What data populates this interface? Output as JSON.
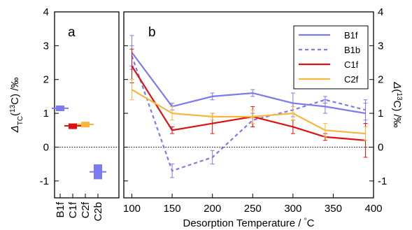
{
  "chart_data": [
    {
      "panel": "a",
      "type": "scatter",
      "categories": [
        "B1f",
        "C1f",
        "C2f",
        "C2b"
      ],
      "ylabel": "Δ_TC(¹³C) /‰",
      "ylim": [
        -1.5,
        4
      ],
      "yticks": [
        -1,
        0,
        1,
        2,
        3,
        4
      ],
      "zero_line": true,
      "points": [
        {
          "category": "B1f",
          "y": 1.15,
          "err": 0.08,
          "color": "#7b7bed"
        },
        {
          "category": "C1f",
          "y": 0.63,
          "err": 0.07,
          "color": "#dd1111"
        },
        {
          "category": "C2f",
          "y": 0.67,
          "err": 0.08,
          "color": "#f6b73c"
        },
        {
          "category": "C2b",
          "y": -0.73,
          "err": 0.22,
          "color": "#7b7bed"
        }
      ]
    },
    {
      "panel": "b",
      "type": "line",
      "xlabel": "Desorption Temperature / °C",
      "ylabel": "Δ(¹³C) /‰",
      "xlim": [
        90,
        400
      ],
      "ylim": [
        -1.5,
        4
      ],
      "xticks": [
        100,
        150,
        200,
        250,
        300,
        350,
        400
      ],
      "yticks": [
        -1,
        0,
        1,
        2,
        3,
        4
      ],
      "zero_line": true,
      "legend": "top-right",
      "series": [
        {
          "name": "B1f",
          "color": "#7b7bed",
          "dash": false,
          "x": [
            100,
            150,
            200,
            250,
            300,
            340,
            390
          ],
          "y": [
            2.8,
            1.2,
            1.5,
            1.6,
            1.3,
            1.2,
            1.0
          ],
          "err": [
            0.5,
            0.1,
            0.1,
            0.1,
            0.3,
            0.2,
            0.3
          ]
        },
        {
          "name": "B1b",
          "color": "#7b7bed",
          "dash": true,
          "x": [
            100,
            150,
            200,
            250,
            300,
            340,
            390
          ],
          "y": [
            2.7,
            -0.7,
            -0.3,
            0.8,
            1.1,
            1.4,
            1.1
          ],
          "err": [
            0.3,
            0.2,
            0.2,
            0.2,
            0.2,
            0.1,
            0.3
          ]
        },
        {
          "name": "C1f",
          "color": "#dd1111",
          "dash": false,
          "x": [
            100,
            150,
            200,
            250,
            300,
            340,
            390
          ],
          "y": [
            2.4,
            0.5,
            0.7,
            0.9,
            0.6,
            0.3,
            0.2
          ],
          "err": [
            0.5,
            0.1,
            0.3,
            0.3,
            0.2,
            0.1,
            0.5
          ]
        },
        {
          "name": "C2f",
          "color": "#f6b73c",
          "dash": false,
          "x": [
            100,
            150,
            200,
            250,
            300,
            340,
            390
          ],
          "y": [
            1.7,
            1.0,
            0.9,
            0.9,
            1.0,
            0.5,
            0.4
          ],
          "err": [
            0.3,
            0.2,
            0.1,
            0.2,
            0.2,
            0.2,
            0.2
          ]
        }
      ]
    }
  ]
}
